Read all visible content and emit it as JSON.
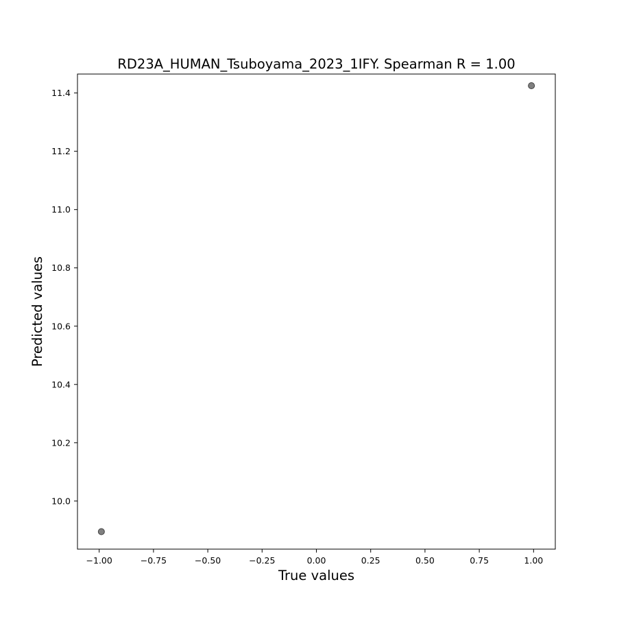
{
  "chart_data": {
    "type": "scatter",
    "title": "RD23A_HUMAN_Tsuboyama_2023_1IFY. Spearman R = 1.00",
    "xlabel": "True values",
    "ylabel": "Predicted values",
    "xlim": [
      -1.1,
      1.1
    ],
    "ylim": [
      9.835,
      11.465
    ],
    "xticks": [
      -1.0,
      -0.75,
      -0.5,
      -0.25,
      0.0,
      0.25,
      0.5,
      0.75,
      1.0
    ],
    "xtick_labels": [
      "−1.00",
      "−0.75",
      "−0.50",
      "−0.25",
      "0.00",
      "0.25",
      "0.50",
      "0.75",
      "1.00"
    ],
    "yticks": [
      10.0,
      10.2,
      10.4,
      10.6,
      10.8,
      11.0,
      11.2,
      11.4
    ],
    "ytick_labels": [
      "10.0",
      "10.2",
      "10.4",
      "10.6",
      "10.8",
      "11.0",
      "11.2",
      "11.4"
    ],
    "grid": false,
    "points": [
      {
        "x": -0.99,
        "y": 9.895
      },
      {
        "x": 0.99,
        "y": 11.425
      }
    ],
    "marker_color": "#808080",
    "marker_edge_color": "#404040"
  }
}
